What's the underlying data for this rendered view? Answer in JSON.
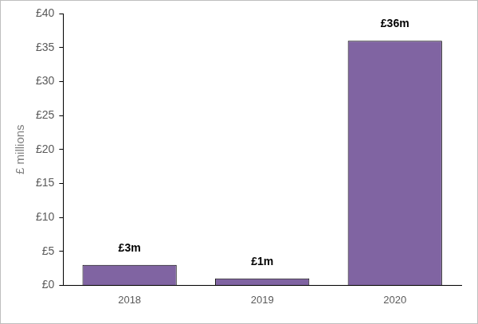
{
  "chart_data": {
    "type": "bar",
    "y_label": "£ millions",
    "categories": [
      "2018",
      "2019",
      "2020"
    ],
    "values": [
      3,
      1,
      36
    ],
    "value_labels": [
      "£3m",
      "£1m",
      "£36m"
    ],
    "data_labels": true,
    "color": "#8064a2",
    "ylim": [
      0,
      40
    ],
    "yticks": [
      {
        "value": 0,
        "label": "£0"
      },
      {
        "value": 5,
        "label": "£5"
      },
      {
        "value": 10,
        "label": "£10"
      },
      {
        "value": 15,
        "label": "£15"
      },
      {
        "value": 20,
        "label": "£20"
      },
      {
        "value": 25,
        "label": "£25"
      },
      {
        "value": 30,
        "label": "£30"
      },
      {
        "value": 35,
        "label": "£35"
      },
      {
        "value": 40,
        "label": "£40"
      }
    ],
    "grid": false
  }
}
